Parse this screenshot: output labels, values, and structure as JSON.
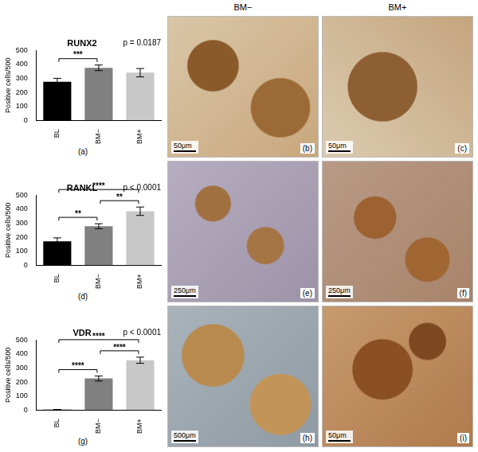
{
  "column_heads": [
    "BM−",
    "BM+"
  ],
  "chart_data": [
    {
      "type": "bar",
      "title": "RUNX2",
      "panel": "(a)",
      "annotation": "p = 0.0187",
      "categories": [
        "BL",
        "BM−",
        "BM+"
      ],
      "values": [
        275,
        375,
        340
      ],
      "errors": [
        25,
        20,
        30
      ],
      "colors": [
        "#000000",
        "#808080",
        "#c8c8c8"
      ],
      "y_label": "Positive cells/500",
      "ylim": [
        0,
        500
      ],
      "yticks": [
        0,
        100,
        200,
        300,
        400,
        500
      ],
      "grid": false,
      "comparisons": [
        {
          "from": "BL",
          "to": "BM−",
          "label": "***"
        }
      ]
    },
    {
      "type": "bar",
      "title": "RANKL",
      "panel": "(d)",
      "annotation": "p < 0.0001",
      "categories": [
        "BL",
        "BM−",
        "BM+"
      ],
      "values": [
        170,
        278,
        385
      ],
      "errors": [
        25,
        18,
        30
      ],
      "colors": [
        "#000000",
        "#808080",
        "#c8c8c8"
      ],
      "y_label": "Positive cells/500",
      "ylim": [
        0,
        500
      ],
      "yticks": [
        0,
        100,
        200,
        300,
        400,
        500
      ],
      "grid": false,
      "comparisons": [
        {
          "from": "BL",
          "to": "BM−",
          "label": "**"
        },
        {
          "from": "BM−",
          "to": "BM+",
          "label": "**"
        },
        {
          "from": "BL",
          "to": "BM+",
          "label": "****"
        }
      ]
    },
    {
      "type": "bar",
      "title": "VDR",
      "panel": "(g)",
      "annotation": "p < 0.0001",
      "categories": [
        "BL",
        "BM−",
        "BM+"
      ],
      "values": [
        3,
        225,
        355
      ],
      "errors": [
        1,
        18,
        22
      ],
      "colors": [
        "#000000",
        "#808080",
        "#c8c8c8"
      ],
      "y_label": "Positive cells/500",
      "ylim": [
        0,
        500
      ],
      "yticks": [
        0,
        100,
        200,
        300,
        400,
        500
      ],
      "grid": false,
      "comparisons": [
        {
          "from": "BL",
          "to": "BM−",
          "label": "****"
        },
        {
          "from": "BM−",
          "to": "BM+",
          "label": "****"
        },
        {
          "from": "BL",
          "to": "BM+",
          "label": "****"
        }
      ]
    }
  ],
  "images": [
    {
      "panel": "(b)",
      "scale_bar": "50μm"
    },
    {
      "panel": "(c)",
      "scale_bar": "50μm"
    },
    {
      "panel": "(e)",
      "scale_bar": "250μm"
    },
    {
      "panel": "(f)",
      "scale_bar": "250μm"
    },
    {
      "panel": "(h)",
      "scale_bar": "500μm"
    },
    {
      "panel": "(i)",
      "scale_bar": "50μm"
    }
  ]
}
